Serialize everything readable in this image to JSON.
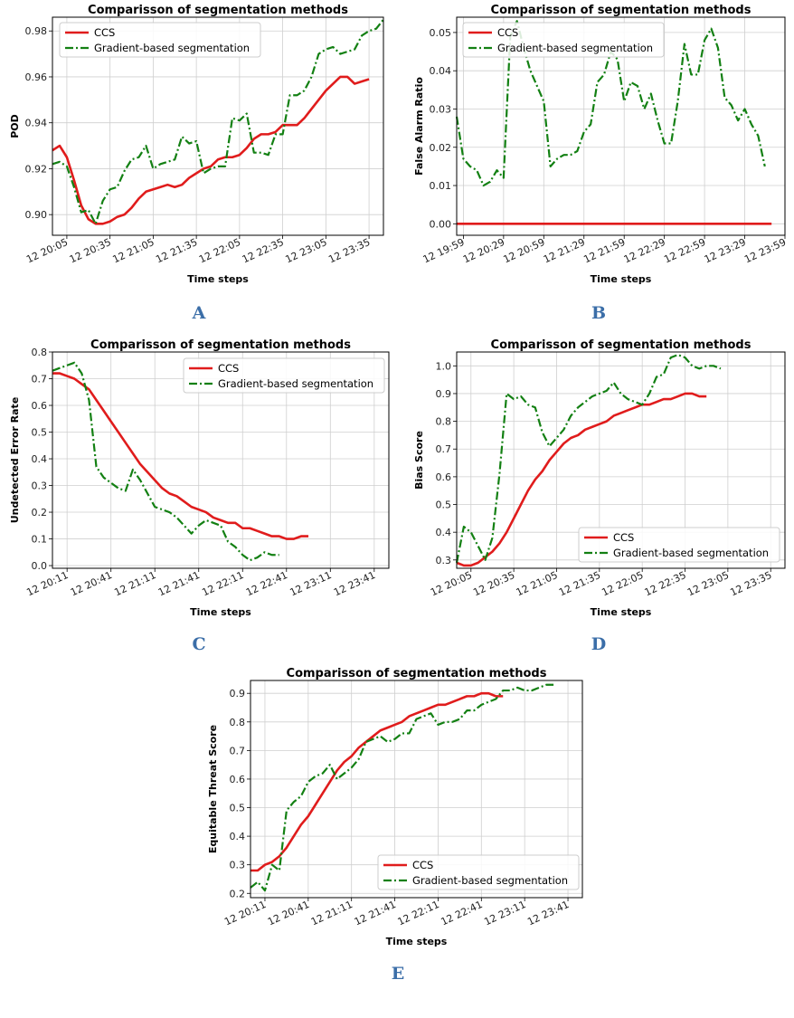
{
  "colors": {
    "ccs": "#e01c1c",
    "gradient": "#138013",
    "panel_letter": "#3b6ea8",
    "grid": "#cfcfcf"
  },
  "chart_data": [
    {
      "id": "A",
      "panel_label": "A",
      "type": "line",
      "title": "Comparisson of segmentation methods",
      "xlabel": "Time steps",
      "ylabel": "POD",
      "ylim": [
        0.891,
        0.986
      ],
      "xlim": [
        0,
        46
      ],
      "yticks": [
        0.9,
        0.92,
        0.94,
        0.96,
        0.98
      ],
      "ytick_labels": [
        "0.90",
        "0.92",
        "0.94",
        "0.96",
        "0.98"
      ],
      "xticks": [
        2,
        8,
        14,
        20,
        26,
        32,
        38,
        44
      ],
      "xtick_labels": [
        "12 20:05",
        "12 20:35",
        "12 21:05",
        "12 21:35",
        "12 22:05",
        "12 22:35",
        "12 23:05",
        "12 23:35"
      ],
      "legend": "top-left",
      "grid": true,
      "series": [
        {
          "name": "CCS",
          "style": "solid",
          "values": [
            0.928,
            0.93,
            0.925,
            0.915,
            0.904,
            0.898,
            0.896,
            0.896,
            0.897,
            0.899,
            0.9,
            0.903,
            0.907,
            0.91,
            0.911,
            0.912,
            0.913,
            0.912,
            0.913,
            0.916,
            0.918,
            0.92,
            0.921,
            0.924,
            0.925,
            0.925,
            0.926,
            0.929,
            0.933,
            0.935,
            0.935,
            0.936,
            0.939,
            0.939,
            0.939,
            0.942,
            0.946,
            0.95,
            0.954,
            0.957,
            0.96,
            0.96,
            0.957,
            0.958,
            0.959
          ]
        },
        {
          "name": "Gradient-based segmentation",
          "style": "dashdot",
          "values": [
            0.922,
            0.923,
            0.921,
            0.912,
            0.901,
            0.902,
            0.896,
            0.906,
            0.911,
            0.912,
            0.919,
            0.924,
            0.925,
            0.93,
            0.92,
            0.922,
            0.923,
            0.924,
            0.934,
            0.931,
            0.932,
            0.918,
            0.92,
            0.921,
            0.921,
            0.942,
            0.941,
            0.944,
            0.927,
            0.927,
            0.926,
            0.935,
            0.935,
            0.952,
            0.952,
            0.954,
            0.96,
            0.97,
            0.972,
            0.973,
            0.97,
            0.971,
            0.972,
            0.978,
            0.98,
            0.981,
            0.985
          ]
        }
      ]
    },
    {
      "id": "B",
      "panel_label": "B",
      "type": "line",
      "title": "Comparisson of segmentation methods",
      "xlabel": "Time steps",
      "ylabel": "False Alarm Ratio",
      "ylim": [
        -0.003,
        0.054
      ],
      "xlim": [
        0,
        49
      ],
      "yticks": [
        0.0,
        0.01,
        0.02,
        0.03,
        0.04,
        0.05
      ],
      "ytick_labels": [
        "0.00",
        "0.01",
        "0.02",
        "0.03",
        "0.04",
        "0.05"
      ],
      "xticks": [
        1,
        7,
        13,
        19,
        25,
        31,
        37,
        43,
        49
      ],
      "xtick_labels": [
        "12 19:59",
        "12 20:29",
        "12 20:59",
        "12 21:29",
        "12 21:59",
        "12 22:29",
        "12 22:59",
        "12 23:29",
        "12 23:59"
      ],
      "legend": "top-left",
      "grid": true,
      "series": [
        {
          "name": "CCS",
          "style": "solid",
          "values": [
            0,
            0,
            0,
            0,
            0,
            0,
            0,
            0,
            0,
            0,
            0,
            0,
            0,
            0,
            0,
            0,
            0,
            0,
            0,
            0,
            0,
            0,
            0,
            0,
            0,
            0,
            0,
            0,
            0,
            0,
            0,
            0,
            0,
            0,
            0,
            0,
            0,
            0,
            0,
            0,
            0,
            0,
            0,
            0,
            0,
            0,
            0,
            0
          ]
        },
        {
          "name": "Gradient-based segmentation",
          "style": "dashdot",
          "values": [
            0.028,
            0.017,
            0.015,
            0.014,
            0.01,
            0.011,
            0.014,
            0.012,
            0.049,
            0.053,
            0.046,
            0.04,
            0.036,
            0.032,
            0.015,
            0.017,
            0.018,
            0.018,
            0.019,
            0.024,
            0.026,
            0.037,
            0.039,
            0.045,
            0.043,
            0.032,
            0.037,
            0.036,
            0.03,
            0.034,
            0.027,
            0.021,
            0.021,
            0.032,
            0.047,
            0.039,
            0.039,
            0.048,
            0.051,
            0.046,
            0.033,
            0.031,
            0.027,
            0.03,
            0.026,
            0.023,
            0.015
          ]
        }
      ]
    },
    {
      "id": "C",
      "panel_label": "C",
      "type": "line",
      "title": "Comparisson of segmentation methods",
      "xlabel": "Time steps",
      "ylabel": "Undetected Error Rate",
      "ylim": [
        -0.01,
        0.8
      ],
      "xlim": [
        0,
        46
      ],
      "yticks": [
        0.0,
        0.1,
        0.2,
        0.3,
        0.4,
        0.5,
        0.6,
        0.7,
        0.8
      ],
      "ytick_labels": [
        "0.0",
        "0.1",
        "0.2",
        "0.3",
        "0.4",
        "0.5",
        "0.6",
        "0.7",
        "0.8"
      ],
      "xticks": [
        2,
        8,
        14,
        20,
        26,
        32,
        38,
        44
      ],
      "xtick_labels": [
        "12 20:11",
        "12 20:41",
        "12 21:11",
        "12 21:41",
        "12 22:11",
        "12 22:41",
        "12 23:11",
        "12 23:41"
      ],
      "legend": "top-right",
      "grid": true,
      "series": [
        {
          "name": "CCS",
          "style": "solid",
          "values": [
            0.72,
            0.72,
            0.71,
            0.7,
            0.68,
            0.66,
            0.62,
            0.58,
            0.54,
            0.5,
            0.46,
            0.42,
            0.38,
            0.35,
            0.32,
            0.29,
            0.27,
            0.26,
            0.24,
            0.22,
            0.21,
            0.2,
            0.18,
            0.17,
            0.16,
            0.16,
            0.14,
            0.14,
            0.13,
            0.12,
            0.11,
            0.11,
            0.1,
            0.1,
            0.11,
            0.11
          ]
        },
        {
          "name": "Gradient-based segmentation",
          "style": "dashdot",
          "values": [
            0.73,
            0.74,
            0.75,
            0.76,
            0.72,
            0.62,
            0.37,
            0.33,
            0.31,
            0.29,
            0.28,
            0.36,
            0.32,
            0.27,
            0.22,
            0.21,
            0.2,
            0.18,
            0.15,
            0.12,
            0.15,
            0.17,
            0.16,
            0.15,
            0.09,
            0.07,
            0.04,
            0.02,
            0.03,
            0.05,
            0.04,
            0.04
          ]
        }
      ]
    },
    {
      "id": "D",
      "panel_label": "D",
      "type": "line",
      "title": "Comparisson of segmentation methods",
      "xlabel": "Time steps",
      "ylabel": "Bias Score",
      "ylim": [
        0.27,
        1.05
      ],
      "xlim": [
        0,
        46
      ],
      "yticks": [
        0.3,
        0.4,
        0.5,
        0.6,
        0.7,
        0.8,
        0.9,
        1.0
      ],
      "ytick_labels": [
        "0.3",
        "0.4",
        "0.5",
        "0.6",
        "0.7",
        "0.8",
        "0.9",
        "1.0"
      ],
      "xticks": [
        2,
        8,
        14,
        20,
        26,
        32,
        38,
        44
      ],
      "xtick_labels": [
        "12 20:05",
        "12 20:35",
        "12 21:05",
        "12 21:35",
        "12 22:05",
        "12 22:35",
        "12 23:05",
        "12 23:35"
      ],
      "legend": "bottom-right",
      "grid": true,
      "series": [
        {
          "name": "CCS",
          "style": "solid",
          "values": [
            0.29,
            0.28,
            0.28,
            0.29,
            0.31,
            0.33,
            0.36,
            0.4,
            0.45,
            0.5,
            0.55,
            0.59,
            0.62,
            0.66,
            0.69,
            0.72,
            0.74,
            0.75,
            0.77,
            0.78,
            0.79,
            0.8,
            0.82,
            0.83,
            0.84,
            0.85,
            0.86,
            0.86,
            0.87,
            0.88,
            0.88,
            0.89,
            0.9,
            0.9,
            0.89,
            0.89
          ]
        },
        {
          "name": "Gradient-based segmentation",
          "style": "dashdot",
          "values": [
            0.29,
            0.42,
            0.4,
            0.35,
            0.3,
            0.38,
            0.61,
            0.9,
            0.88,
            0.89,
            0.86,
            0.85,
            0.76,
            0.71,
            0.74,
            0.77,
            0.82,
            0.85,
            0.87,
            0.89,
            0.9,
            0.91,
            0.94,
            0.9,
            0.88,
            0.87,
            0.86,
            0.9,
            0.96,
            0.97,
            1.03,
            1.04,
            1.03,
            1.0,
            0.99,
            1.0,
            1.0,
            0.99
          ]
        }
      ]
    },
    {
      "id": "E",
      "panel_label": "E",
      "type": "line",
      "title": "Comparisson of segmentation methods",
      "xlabel": "Time steps",
      "ylabel": "Equitable Threat Score",
      "ylim": [
        0.185,
        0.945
      ],
      "xlim": [
        0,
        46
      ],
      "yticks": [
        0.2,
        0.3,
        0.4,
        0.5,
        0.6,
        0.7,
        0.8,
        0.9
      ],
      "ytick_labels": [
        "0.2",
        "0.3",
        "0.4",
        "0.5",
        "0.6",
        "0.7",
        "0.8",
        "0.9"
      ],
      "xticks": [
        2,
        8,
        14,
        20,
        26,
        32,
        38,
        44
      ],
      "xtick_labels": [
        "12 20:11",
        "12 20:41",
        "12 21:11",
        "12 21:41",
        "12 22:11",
        "12 22:41",
        "12 23:11",
        "12 23:41"
      ],
      "legend": "bottom-right",
      "grid": true,
      "series": [
        {
          "name": "CCS",
          "style": "solid",
          "values": [
            0.28,
            0.28,
            0.3,
            0.31,
            0.33,
            0.36,
            0.4,
            0.44,
            0.47,
            0.51,
            0.55,
            0.59,
            0.63,
            0.66,
            0.68,
            0.71,
            0.73,
            0.75,
            0.77,
            0.78,
            0.79,
            0.8,
            0.82,
            0.83,
            0.84,
            0.85,
            0.86,
            0.86,
            0.87,
            0.88,
            0.89,
            0.89,
            0.9,
            0.9,
            0.89,
            0.89
          ]
        },
        {
          "name": "Gradient-based segmentation",
          "style": "dashdot",
          "values": [
            0.22,
            0.24,
            0.21,
            0.3,
            0.28,
            0.49,
            0.52,
            0.54,
            0.59,
            0.61,
            0.62,
            0.65,
            0.6,
            0.62,
            0.64,
            0.67,
            0.73,
            0.74,
            0.75,
            0.73,
            0.74,
            0.76,
            0.76,
            0.81,
            0.82,
            0.83,
            0.79,
            0.8,
            0.8,
            0.81,
            0.84,
            0.84,
            0.86,
            0.87,
            0.88,
            0.91,
            0.91,
            0.92,
            0.91,
            0.91,
            0.92,
            0.93,
            0.93
          ]
        }
      ]
    }
  ]
}
